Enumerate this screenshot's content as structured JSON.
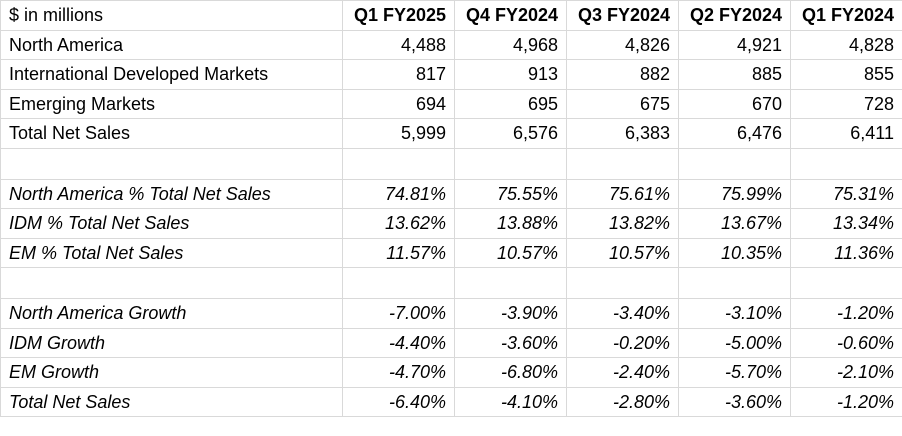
{
  "header": {
    "label": "$ in millions",
    "columns": [
      "Q1 FY2025",
      "Q4 FY2024",
      "Q3 FY2024",
      "Q2 FY2024",
      "Q1 FY2024"
    ]
  },
  "net_sales": [
    {
      "label": "North America",
      "values": [
        "4,488",
        "4,968",
        "4,826",
        "4,921",
        "4,828"
      ]
    },
    {
      "label": "International Developed Markets",
      "values": [
        "817",
        "913",
        "882",
        "885",
        "855"
      ]
    },
    {
      "label": "Emerging Markets",
      "values": [
        "694",
        "695",
        "675",
        "670",
        "728"
      ]
    },
    {
      "label": "Total Net Sales",
      "values": [
        "5,999",
        "6,576",
        "6,383",
        "6,476",
        "6,411"
      ]
    }
  ],
  "share": [
    {
      "label": "North America % Total Net Sales",
      "values": [
        "74.81%",
        "75.55%",
        "75.61%",
        "75.99%",
        "75.31%"
      ]
    },
    {
      "label": "IDM % Total Net Sales",
      "values": [
        "13.62%",
        "13.88%",
        "13.82%",
        "13.67%",
        "13.34%"
      ]
    },
    {
      "label": "EM % Total Net Sales",
      "values": [
        "11.57%",
        "10.57%",
        "10.57%",
        "10.35%",
        "11.36%"
      ]
    }
  ],
  "growth": [
    {
      "label": "North America Growth",
      "values": [
        "-7.00%",
        "-3.90%",
        "-3.40%",
        "-3.10%",
        "-1.20%"
      ]
    },
    {
      "label": "IDM Growth",
      "values": [
        "-4.40%",
        "-3.60%",
        "-0.20%",
        "-5.00%",
        "-0.60%"
      ]
    },
    {
      "label": "EM Growth",
      "values": [
        "-4.70%",
        "-6.80%",
        "-2.40%",
        "-5.70%",
        "-2.10%"
      ]
    },
    {
      "label": "Total Net Sales",
      "values": [
        "-6.40%",
        "-4.10%",
        "-2.80%",
        "-3.60%",
        "-1.20%"
      ]
    }
  ]
}
